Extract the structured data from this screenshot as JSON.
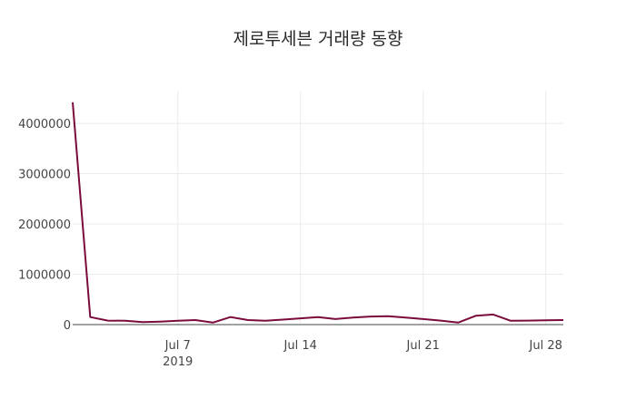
{
  "chart_data": {
    "type": "line",
    "title": "제로투세븐 거래량 동향",
    "xlabel": "",
    "ylabel": "",
    "x_ticks": [
      {
        "date": "2019-07-07",
        "label": "Jul 7",
        "sublabel": "2019"
      },
      {
        "date": "2019-07-14",
        "label": "Jul 14",
        "sublabel": ""
      },
      {
        "date": "2019-07-21",
        "label": "Jul 21",
        "sublabel": ""
      },
      {
        "date": "2019-07-28",
        "label": "Jul 28",
        "sublabel": ""
      }
    ],
    "y_ticks": [
      0,
      1000000,
      2000000,
      3000000,
      4000000
    ],
    "x_range": [
      "2019-07-01",
      "2019-07-29"
    ],
    "ylim": [
      0,
      4650000
    ],
    "grid": true,
    "legend": "none",
    "series": [
      {
        "color": "#7a0b3c",
        "x": [
          "2019-07-01",
          "2019-07-02",
          "2019-07-03",
          "2019-07-04",
          "2019-07-05",
          "2019-07-06",
          "2019-07-07",
          "2019-07-08",
          "2019-07-09",
          "2019-07-10",
          "2019-07-11",
          "2019-07-12",
          "2019-07-13",
          "2019-07-14",
          "2019-07-15",
          "2019-07-16",
          "2019-07-17",
          "2019-07-18",
          "2019-07-19",
          "2019-07-20",
          "2019-07-21",
          "2019-07-22",
          "2019-07-23",
          "2019-07-24",
          "2019-07-25",
          "2019-07-26",
          "2019-07-27",
          "2019-07-28",
          "2019-07-29"
        ],
        "y": [
          4420000,
          150000,
          80000,
          75000,
          50000,
          60000,
          75000,
          90000,
          40000,
          150000,
          90000,
          75000,
          100000,
          125000,
          150000,
          110000,
          140000,
          160000,
          165000,
          140000,
          110000,
          80000,
          40000,
          175000,
          200000,
          75000,
          80000,
          85000,
          90000
        ]
      }
    ]
  }
}
